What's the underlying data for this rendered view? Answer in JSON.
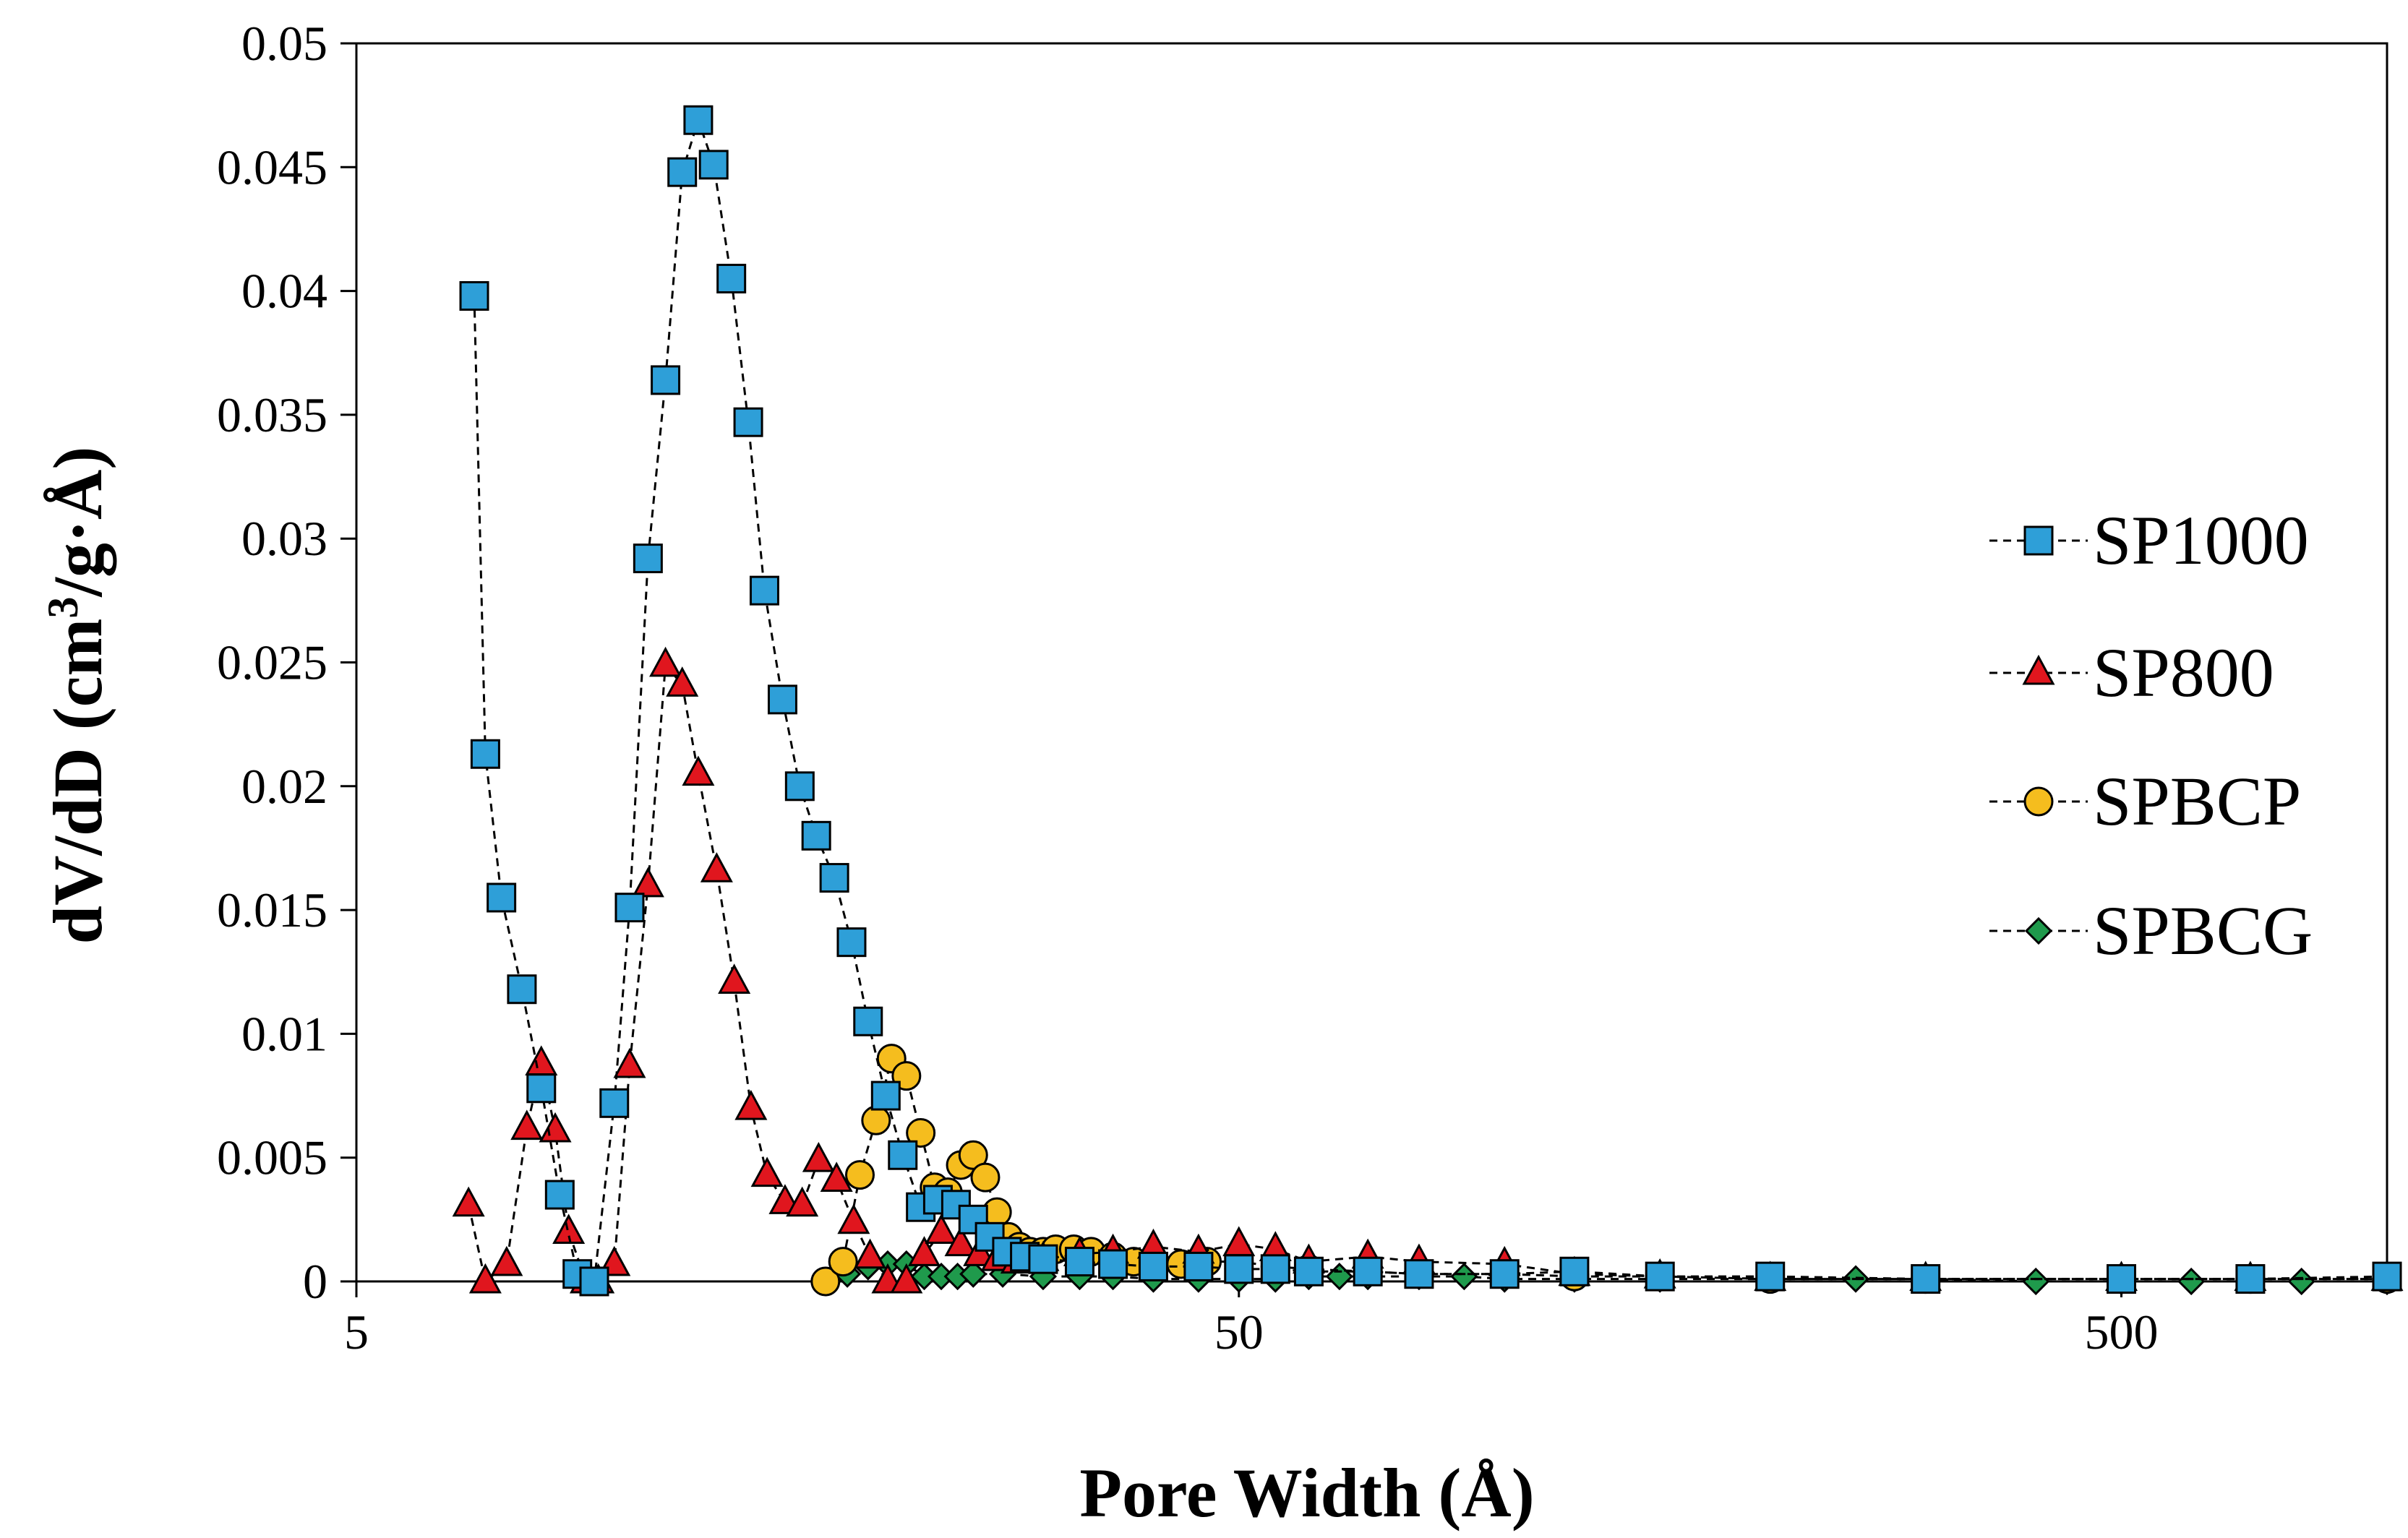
{
  "chart_data": {
    "type": "scatter",
    "xlabel": "Pore Width (Å)",
    "ylabel_main": "dV/dD (cm",
    "ylabel_sup": "3",
    "ylabel_tail": "/g·Å)",
    "x_scale": "log",
    "xlim": [
      5,
      1000
    ],
    "ylim": [
      0,
      0.05
    ],
    "x_ticks": [
      "5",
      "50",
      "500"
    ],
    "x_tick_values": [
      5,
      50,
      500
    ],
    "y_ticks": [
      "0",
      "0.005",
      "0.01",
      "0.015",
      "0.02",
      "0.025",
      "0.03",
      "0.035",
      "0.04",
      "0.045",
      "0.05"
    ],
    "y_tick_values": [
      0,
      0.005,
      0.01,
      0.015,
      0.02,
      0.025,
      0.03,
      0.035,
      0.04,
      0.045,
      0.05
    ],
    "legend_position": "right",
    "grid": false,
    "series": [
      {
        "name": "SP1000",
        "marker": "square",
        "color": "#2e9fd8",
        "x": [
          6.8,
          7.0,
          7.3,
          7.7,
          8.1,
          8.5,
          8.9,
          9.3,
          9.8,
          10.2,
          10.7,
          11.2,
          11.7,
          12.2,
          12.7,
          13.3,
          13.9,
          14.5,
          15.2,
          15.9,
          16.6,
          17.4,
          18.2,
          19.0,
          19.9,
          20.8,
          21.8,
          22.8,
          23.9,
          25.0,
          26.1,
          27.3,
          28.6,
          30,
          33,
          36,
          40,
          45,
          50,
          55,
          60,
          70,
          80,
          100,
          120,
          150,
          200,
          300,
          500,
          700,
          1000
        ],
        "y": [
          0.0398,
          0.0213,
          0.0155,
          0.0118,
          0.0078,
          0.0035,
          0.0003,
          0.0,
          0.0072,
          0.0151,
          0.0292,
          0.0364,
          0.0448,
          0.0469,
          0.0451,
          0.0405,
          0.0347,
          0.0279,
          0.0235,
          0.02,
          0.018,
          0.0163,
          0.0137,
          0.0105,
          0.0075,
          0.0051,
          0.003,
          0.0033,
          0.0031,
          0.0025,
          0.0018,
          0.0012,
          0.001,
          0.0009,
          0.0008,
          0.0007,
          0.0006,
          0.0006,
          0.0005,
          0.0005,
          0.0004,
          0.0004,
          0.0003,
          0.0003,
          0.0004,
          0.0002,
          0.0002,
          0.0001,
          0.0001,
          0.0001,
          0.0002
        ]
      },
      {
        "name": "SP800",
        "marker": "triangle",
        "color": "#e0161e",
        "x": [
          6.7,
          7.0,
          7.4,
          7.8,
          8.1,
          8.4,
          8.7,
          9.1,
          9.4,
          9.8,
          10.2,
          10.7,
          11.2,
          11.7,
          12.2,
          12.8,
          13.4,
          14.0,
          14.6,
          15.3,
          16.0,
          16.7,
          17.5,
          18.3,
          19.1,
          20.0,
          21.0,
          22.0,
          23.0,
          24.2,
          25.4,
          26.6,
          28,
          30,
          33,
          36,
          40,
          45,
          50,
          55,
          60,
          70,
          80,
          100,
          120,
          150,
          200,
          300,
          500,
          700,
          1000
        ],
        "y": [
          0.0031,
          0.0,
          0.0007,
          0.0062,
          0.0088,
          0.0061,
          0.002,
          0.0,
          0.0,
          0.0007,
          0.0087,
          0.016,
          0.0249,
          0.0241,
          0.0205,
          0.0166,
          0.0121,
          0.007,
          0.0043,
          0.0032,
          0.0031,
          0.0049,
          0.0041,
          0.0024,
          0.001,
          0.0,
          0.0,
          0.0011,
          0.002,
          0.0015,
          0.0011,
          0.0009,
          0.0008,
          0.0009,
          0.0011,
          0.0012,
          0.0014,
          0.0012,
          0.0015,
          0.0013,
          0.0008,
          0.001,
          0.0008,
          0.0007,
          0.0003,
          0.0002,
          0.0001,
          0.0001,
          0.0001,
          0.0001,
          0.0001
        ]
      },
      {
        "name": "SPBCP",
        "marker": "circle",
        "color": "#f5bd1e",
        "x": [
          17.0,
          17.8,
          18.6,
          19.4,
          20.2,
          21.0,
          21.8,
          22.6,
          23.4,
          24.2,
          25.0,
          25.8,
          26.6,
          27.4,
          28.2,
          29.0,
          30,
          31,
          32.5,
          34,
          36,
          38,
          40,
          43,
          46,
          50,
          55,
          60,
          70,
          80,
          100,
          120,
          150,
          200,
          300,
          500,
          700,
          1000
        ],
        "y": [
          0.0,
          0.0008,
          0.0043,
          0.0065,
          0.009,
          0.0083,
          0.006,
          0.0038,
          0.0036,
          0.0047,
          0.0051,
          0.0042,
          0.0028,
          0.0018,
          0.0014,
          0.0012,
          0.0012,
          0.0013,
          0.0013,
          0.0012,
          0.001,
          0.0008,
          0.0008,
          0.0007,
          0.0008,
          0.0008,
          0.0006,
          0.0005,
          0.0004,
          0.0003,
          0.0003,
          0.0002,
          0.0002,
          0.0001,
          0.0001,
          0.0001,
          0.0001,
          0.0001
        ]
      },
      {
        "name": "SPBCG",
        "marker": "diamond",
        "color": "#1f9a4c",
        "x": [
          18.0,
          19.0,
          20.0,
          21.0,
          22.0,
          23.0,
          24.0,
          25.0,
          27,
          30,
          33,
          36,
          40,
          45,
          50,
          55,
          60,
          65,
          70,
          80,
          90,
          100,
          120,
          150,
          200,
          250,
          300,
          400,
          500,
          600,
          800,
          1000
        ],
        "y": [
          0.0003,
          0.0006,
          0.0007,
          0.0007,
          0.0002,
          0.0002,
          0.0002,
          0.0003,
          0.0003,
          0.0002,
          0.0002,
          0.0002,
          0.0001,
          0.0001,
          0.0001,
          0.0001,
          0.0002,
          0.0002,
          0.0002,
          0.0002,
          0.0002,
          0.0001,
          0.0001,
          0.0001,
          0.0001,
          0.0001,
          0.0001,
          0.0,
          0.0,
          0.0,
          0.0,
          0.0
        ]
      }
    ]
  }
}
